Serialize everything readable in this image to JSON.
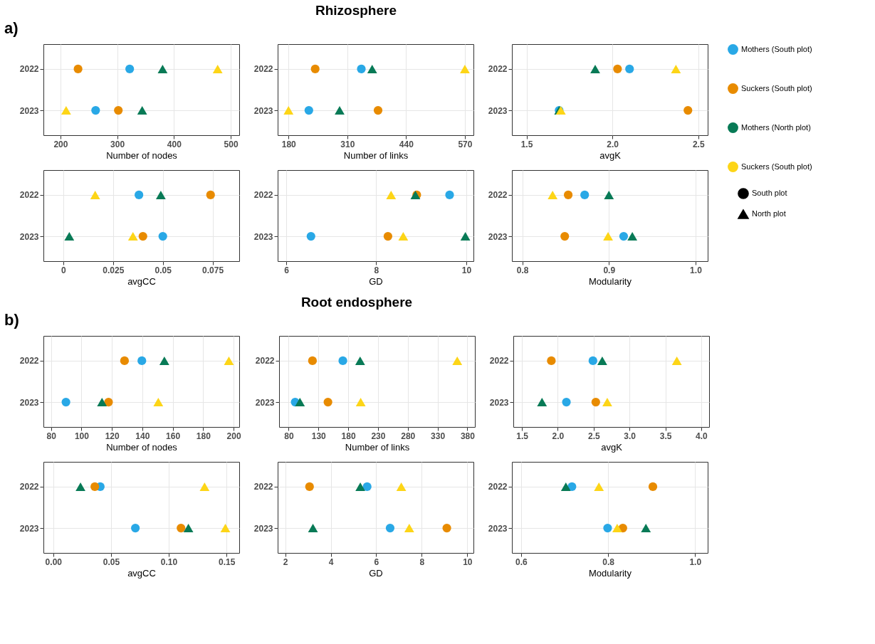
{
  "chart_data": [
    {
      "type": "scatter",
      "orientation": "horizontal",
      "annotations": [
        "a)"
      ],
      "categories": [
        "2022",
        "2023"
      ],
      "xlabel": "Number of nodes",
      "xlim": [
        170,
        515
      ],
      "xticks": [
        200,
        300,
        400,
        500
      ],
      "grid": true,
      "series": [
        {
          "color": "#29a8e6",
          "marker": "circle",
          "values": [
            322,
            262
          ]
        },
        {
          "color": "#e88b00",
          "marker": "circle",
          "values": [
            231,
            302
          ]
        },
        {
          "color": "#087a56",
          "marker": "triangle",
          "values": [
            380,
            344
          ]
        },
        {
          "color": "#fdd517",
          "marker": "triangle",
          "values": [
            477,
            210
          ]
        }
      ]
    },
    {
      "type": "scatter",
      "orientation": "horizontal",
      "title": "Rhizosphere",
      "categories": [
        "2022",
        "2023"
      ],
      "xlabel": "Number of links",
      "xlim": [
        156,
        589
      ],
      "xticks": [
        180,
        310,
        440,
        570
      ],
      "grid": true,
      "series": [
        {
          "color": "#29a8e6",
          "marker": "circle",
          "values": [
            341,
            225
          ]
        },
        {
          "color": "#e88b00",
          "marker": "circle",
          "values": [
            239,
            378
          ]
        },
        {
          "color": "#087a56",
          "marker": "triangle",
          "values": [
            365,
            293
          ]
        },
        {
          "color": "#fdd517",
          "marker": "triangle",
          "values": [
            570,
            180
          ]
        }
      ]
    },
    {
      "type": "scatter",
      "orientation": "horizontal",
      "categories": [
        "2022",
        "2023"
      ],
      "xlabel": "avgK",
      "xlim": [
        1.415,
        2.555
      ],
      "xticks": [
        1.5,
        {
          "value": 2,
          "label": "2.0"
        },
        2.5
      ],
      "grid": true,
      "series": [
        {
          "color": "#29a8e6",
          "marker": "circle",
          "values": [
            2.1,
            1.69
          ]
        },
        {
          "color": "#e88b00",
          "marker": "circle",
          "values": [
            2.03,
            2.44
          ]
        },
        {
          "color": "#087a56",
          "marker": "triangle",
          "values": [
            1.9,
            1.69
          ]
        },
        {
          "color": "#fdd517",
          "marker": "triangle",
          "values": [
            2.37,
            1.7
          ]
        }
      ]
    },
    {
      "type": "scatter",
      "orientation": "horizontal",
      "categories": [
        "2022",
        "2023"
      ],
      "xlabel": "avgCC",
      "xlim": [
        -0.01,
        0.0884
      ],
      "xticks": [
        0,
        0.025,
        0.05,
        0.075
      ],
      "grid": true,
      "series": [
        {
          "color": "#29a8e6",
          "marker": "circle",
          "values": [
            0.038,
            0.05
          ]
        },
        {
          "color": "#e88b00",
          "marker": "circle",
          "values": [
            0.074,
            0.04
          ]
        },
        {
          "color": "#087a56",
          "marker": "triangle",
          "values": [
            0.049,
            0.003
          ]
        },
        {
          "color": "#fdd517",
          "marker": "triangle",
          "values": [
            0.016,
            0.035
          ]
        }
      ]
    },
    {
      "type": "scatter",
      "orientation": "horizontal",
      "categories": [
        "2022",
        "2023"
      ],
      "xlabel": "GD",
      "xlim": [
        5.81,
        10.16
      ],
      "xticks": [
        6,
        8,
        10
      ],
      "grid": true,
      "series": [
        {
          "color": "#29a8e6",
          "marker": "circle",
          "values": [
            9.63,
            6.55
          ]
        },
        {
          "color": "#e88b00",
          "marker": "circle",
          "values": [
            8.9,
            8.26
          ]
        },
        {
          "color": "#087a56",
          "marker": "triangle",
          "values": [
            8.87,
            9.98
          ]
        },
        {
          "color": "#fdd517",
          "marker": "triangle",
          "values": [
            8.33,
            8.6
          ]
        }
      ]
    },
    {
      "type": "scatter",
      "orientation": "horizontal",
      "legend": "right",
      "annotations": [
        "South plot",
        "North plot"
      ],
      "categories": [
        "2022",
        "2023"
      ],
      "xlabel": "Modularity",
      "xlim": [
        0.788,
        1.014
      ],
      "xticks": [
        0.8,
        0.9,
        {
          "value": 1,
          "label": "1.0"
        }
      ],
      "grid": true,
      "series": [
        {
          "name": "Mothers (South plot)",
          "color": "#29a8e6",
          "marker": "circle",
          "values": [
            0.872,
            0.917
          ]
        },
        {
          "name": "Suckers (South plot)",
          "color": "#e88b00",
          "marker": "circle",
          "values": [
            0.853,
            0.849
          ]
        },
        {
          "name": "Mothers (North plot)",
          "color": "#087a56",
          "marker": "triangle",
          "values": [
            0.9,
            0.927
          ]
        },
        {
          "name": "Suckers (South plot)",
          "color": "#fdd517",
          "marker": "triangle",
          "values": [
            0.835,
            0.899
          ]
        }
      ]
    },
    {
      "type": "scatter",
      "orientation": "horizontal",
      "annotations": [
        "b)"
      ],
      "categories": [
        "2022",
        "2023"
      ],
      "xlabel": "Number of nodes",
      "xlim": [
        75,
        203.7
      ],
      "xticks": [
        80,
        100,
        120,
        140,
        160,
        180,
        200
      ],
      "grid": true,
      "series": [
        {
          "color": "#29a8e6",
          "marker": "circle",
          "values": [
            139.7,
            89.8
          ]
        },
        {
          "color": "#e88b00",
          "marker": "circle",
          "values": [
            128.3,
            117.8
          ]
        },
        {
          "color": "#087a56",
          "marker": "triangle",
          "values": [
            154.5,
            113.5
          ]
        },
        {
          "color": "#fdd517",
          "marker": "triangle",
          "values": [
            196.9,
            150.5
          ]
        }
      ]
    },
    {
      "type": "scatter",
      "orientation": "horizontal",
      "title": "Root endosphere",
      "categories": [
        "2022",
        "2023"
      ],
      "xlabel": "Number of links",
      "xlim": [
        64,
        392.6
      ],
      "xticks": [
        80,
        130,
        180,
        230,
        280,
        330,
        380
      ],
      "grid": true,
      "series": [
        {
          "color": "#29a8e6",
          "marker": "circle",
          "values": [
            171,
            91
          ]
        },
        {
          "color": "#e88b00",
          "marker": "circle",
          "values": [
            120,
            146
          ]
        },
        {
          "color": "#087a56",
          "marker": "triangle",
          "values": [
            200,
            99
          ]
        },
        {
          "color": "#fdd517",
          "marker": "triangle",
          "values": [
            363,
            201
          ]
        }
      ]
    },
    {
      "type": "scatter",
      "orientation": "horizontal",
      "categories": [
        "2022",
        "2023"
      ],
      "xlabel": "avgK",
      "xlim": [
        1.38,
        4.11
      ],
      "xticks": [
        1.5,
        {
          "value": 2,
          "label": "2.0"
        },
        2.5,
        {
          "value": 3,
          "label": "3.0"
        },
        3.5,
        {
          "value": 4,
          "label": "4.0"
        }
      ],
      "grid": true,
      "series": [
        {
          "color": "#29a8e6",
          "marker": "circle",
          "values": [
            2.49,
            2.12
          ]
        },
        {
          "color": "#e88b00",
          "marker": "circle",
          "values": [
            1.91,
            2.53
          ]
        },
        {
          "color": "#087a56",
          "marker": "triangle",
          "values": [
            2.62,
            1.78
          ]
        },
        {
          "color": "#fdd517",
          "marker": "triangle",
          "values": [
            3.66,
            2.69
          ]
        }
      ]
    },
    {
      "type": "scatter",
      "orientation": "horizontal",
      "categories": [
        "2022",
        "2023"
      ],
      "xlabel": "avgCC",
      "xlim": [
        -0.0085,
        0.161
      ],
      "xticks": [
        {
          "value": 0,
          "label": "0.00"
        },
        0.05,
        {
          "value": 0.1,
          "label": "0.10"
        },
        0.15
      ],
      "grid": true,
      "series": [
        {
          "color": "#29a8e6",
          "marker": "circle",
          "values": [
            0.0407,
            0.0711
          ]
        },
        {
          "color": "#e88b00",
          "marker": "circle",
          "values": [
            0.036,
            0.1106
          ]
        },
        {
          "color": "#087a56",
          "marker": "triangle",
          "values": [
            0.0236,
            0.117
          ]
        },
        {
          "color": "#fdd517",
          "marker": "triangle",
          "values": [
            0.131,
            0.149
          ]
        }
      ]
    },
    {
      "type": "scatter",
      "orientation": "horizontal",
      "categories": [
        "2022",
        "2023"
      ],
      "xlabel": "GD",
      "xlim": [
        1.67,
        10.27
      ],
      "xticks": [
        2,
        4,
        6,
        8,
        10
      ],
      "grid": true,
      "series": [
        {
          "color": "#29a8e6",
          "marker": "circle",
          "values": [
            5.6,
            6.61
          ]
        },
        {
          "color": "#e88b00",
          "marker": "circle",
          "values": [
            3.07,
            9.1
          ]
        },
        {
          "color": "#087a56",
          "marker": "triangle",
          "values": [
            5.3,
            3.22
          ]
        },
        {
          "color": "#fdd517",
          "marker": "triangle",
          "values": [
            7.1,
            7.45
          ]
        }
      ]
    },
    {
      "type": "scatter",
      "orientation": "horizontal",
      "categories": [
        "2022",
        "2023"
      ],
      "xlabel": "Modularity",
      "xlim": [
        0.579,
        1.029
      ],
      "xticks": [
        0.6,
        0.8,
        {
          "value": 1,
          "label": "1.0"
        }
      ],
      "grid": true,
      "series": [
        {
          "color": "#29a8e6",
          "marker": "circle",
          "values": [
            0.717,
            0.799
          ]
        },
        {
          "color": "#e88b00",
          "marker": "circle",
          "values": [
            0.903,
            0.834
          ]
        },
        {
          "color": "#087a56",
          "marker": "triangle",
          "values": [
            0.703,
            0.887
          ]
        },
        {
          "color": "#fdd517",
          "marker": "triangle",
          "values": [
            0.779,
            0.821
          ]
        }
      ]
    }
  ]
}
